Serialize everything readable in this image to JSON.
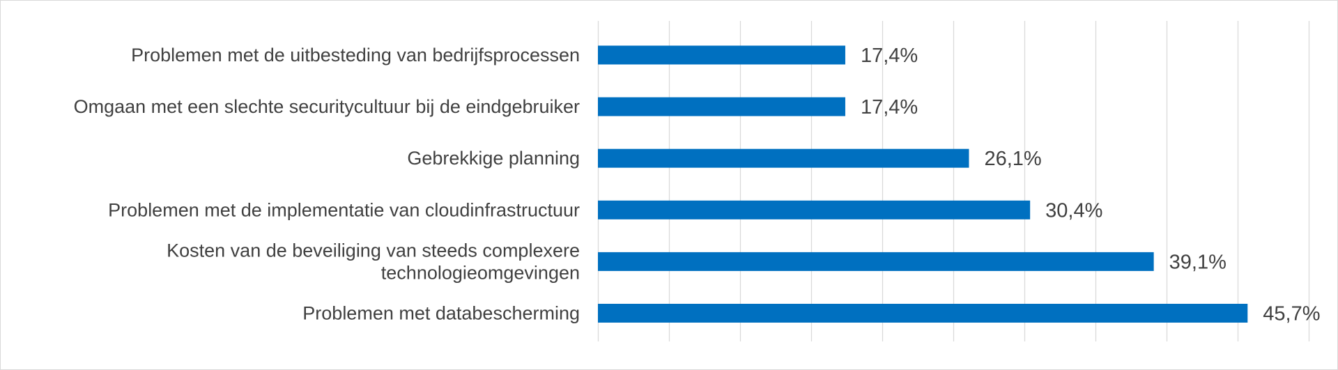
{
  "chart_data": {
    "type": "bar",
    "orientation": "horizontal",
    "title": "",
    "xlabel": "",
    "ylabel": "",
    "categories": [
      "Problemen met de uitbesteding van bedrijfsprocessen",
      "Omgaan met een slechte securitycultuur bij de eindgebruiker",
      "Gebrekkige planning",
      "Problemen met de implementatie van cloudinfrastructuur",
      "Kosten van de beveiliging van steeds complexere technologieomgevingen",
      "Problemen met databescherming"
    ],
    "category_lines": [
      [
        "Problemen met de uitbesteding van bedrijfsprocessen"
      ],
      [
        "Omgaan met een slechte securitycultuur bij de eindgebruiker"
      ],
      [
        "Gebrekkige planning"
      ],
      [
        "Problemen met de implementatie van cloudinfrastructuur"
      ],
      [
        "Kosten van de beveiliging van steeds complexere",
        "technologieomgevingen"
      ],
      [
        "Problemen met databescherming"
      ]
    ],
    "values": [
      17.4,
      17.4,
      26.1,
      30.4,
      39.1,
      45.7
    ],
    "value_labels": [
      "17,4%",
      "17,4%",
      "26,1%",
      "30,4%",
      "39,1%",
      "45,7%"
    ],
    "xlim": [
      0,
      50
    ],
    "x_gridline_step": 5,
    "grid": true,
    "legend": "none",
    "colors": {
      "bar": "#0070C0",
      "grid": "#d9d9d9",
      "text": "#404040"
    }
  }
}
